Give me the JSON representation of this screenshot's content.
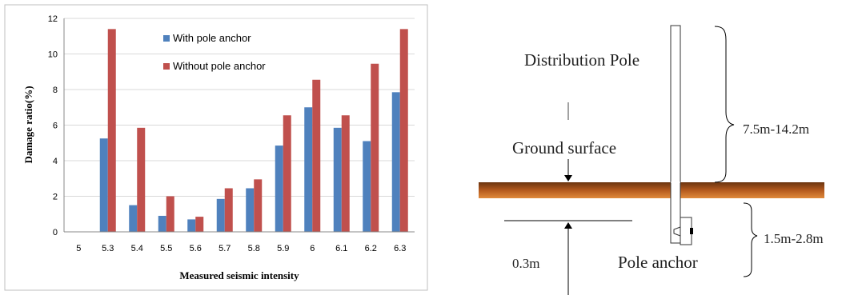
{
  "chart_data": {
    "type": "bar",
    "categories": [
      "5",
      "5.3",
      "5.4",
      "5.5",
      "5.6",
      "5.7",
      "5.8",
      "5.9",
      "6",
      "6.1",
      "6.2",
      "6.3"
    ],
    "series": [
      {
        "name": "With pole anchor",
        "color": "#4f81bd",
        "values": [
          0,
          5.25,
          1.5,
          0.9,
          0.7,
          1.85,
          2.45,
          4.85,
          7.0,
          5.85,
          5.1,
          7.85
        ]
      },
      {
        "name": "Without pole anchor",
        "color": "#c0504d",
        "values": [
          0,
          11.4,
          5.85,
          2.0,
          0.85,
          2.45,
          2.95,
          6.55,
          8.55,
          6.55,
          9.45,
          11.4
        ]
      }
    ],
    "xlabel": "Measured seismic intensity",
    "ylabel": "Damage ratio(%)",
    "ylim": [
      0,
      12
    ],
    "yticks": [
      0,
      2,
      4,
      6,
      8,
      10,
      12
    ],
    "grid": true,
    "legend": "top-center"
  },
  "diagram": {
    "pole_label": "Distribution Pole",
    "ground_label": "Ground surface",
    "anchor_label": "Pole anchor",
    "above_ground_length": "7.5m-14.2m",
    "below_ground_length": "1.5m-2.8m",
    "anchor_depth": "0.3m",
    "ground_color": "#b45a1e"
  }
}
